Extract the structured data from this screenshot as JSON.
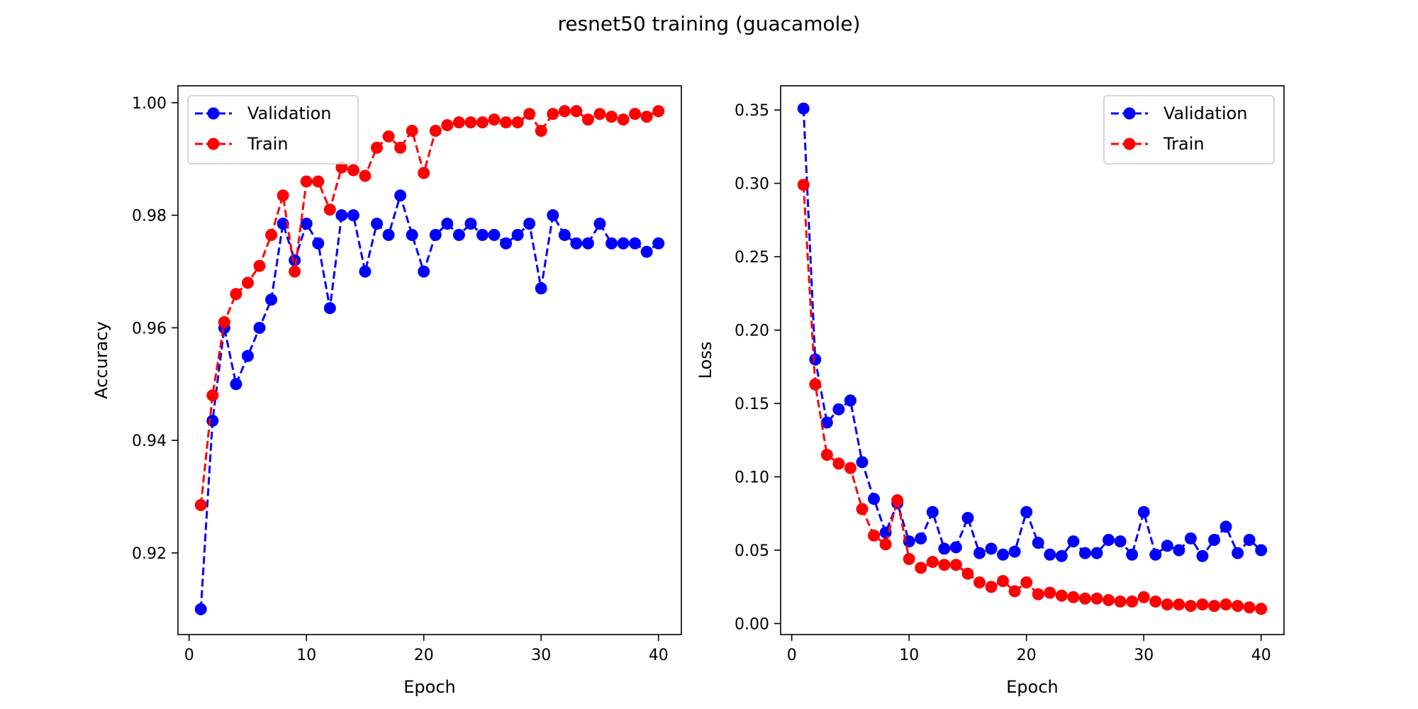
{
  "title": "resnet50 training (guacamole)",
  "colors": {
    "validation": "#0000ff",
    "train": "#ff0000",
    "axis": "#000000",
    "legend_border": "#cccccc"
  },
  "chart_data": [
    {
      "type": "line",
      "xlabel": "Epoch",
      "ylabel": "Accuracy",
      "xlim": [
        -0.95,
        41.95
      ],
      "ylim": [
        0.9055,
        1.003
      ],
      "xticks": [
        0,
        10,
        20,
        30,
        40
      ],
      "xtick_labels": [
        "0",
        "10",
        "20",
        "30",
        "40"
      ],
      "yticks": [
        0.92,
        0.94,
        0.96,
        0.98,
        1.0
      ],
      "ytick_labels": [
        "0.92",
        "0.94",
        "0.96",
        "0.98",
        "1.00"
      ],
      "grid": false,
      "legend_position": "upper left",
      "x": [
        1,
        2,
        3,
        4,
        5,
        6,
        7,
        8,
        9,
        10,
        11,
        12,
        13,
        14,
        15,
        16,
        17,
        18,
        19,
        20,
        21,
        22,
        23,
        24,
        25,
        26,
        27,
        28,
        29,
        30,
        31,
        32,
        33,
        34,
        35,
        36,
        37,
        38,
        39,
        40
      ],
      "series": [
        {
          "name": "Validation",
          "color": "#0000ff",
          "values": [
            0.91,
            0.9435,
            0.96,
            0.95,
            0.955,
            0.96,
            0.965,
            0.9785,
            0.972,
            0.9785,
            0.975,
            0.9635,
            0.98,
            0.98,
            0.97,
            0.9785,
            0.9765,
            0.9835,
            0.9765,
            0.97,
            0.9765,
            0.9785,
            0.9765,
            0.9785,
            0.9765,
            0.9765,
            0.975,
            0.9765,
            0.9785,
            0.967,
            0.98,
            0.9765,
            0.975,
            0.975,
            0.9785,
            0.975,
            0.975,
            0.975,
            0.9735,
            0.975
          ]
        },
        {
          "name": "Train",
          "color": "#ff0000",
          "values": [
            0.9285,
            0.948,
            0.961,
            0.966,
            0.968,
            0.971,
            0.9765,
            0.9835,
            0.97,
            0.986,
            0.986,
            0.981,
            0.9885,
            0.988,
            0.987,
            0.992,
            0.994,
            0.992,
            0.995,
            0.9875,
            0.995,
            0.996,
            0.9965,
            0.9965,
            0.9965,
            0.997,
            0.9965,
            0.9965,
            0.998,
            0.995,
            0.998,
            0.9985,
            0.9985,
            0.997,
            0.998,
            0.9975,
            0.997,
            0.998,
            0.9975,
            0.9985
          ]
        }
      ]
    },
    {
      "type": "line",
      "xlabel": "Epoch",
      "ylabel": "Loss",
      "xlim": [
        -0.95,
        41.95
      ],
      "ylim": [
        -0.0075,
        0.3665
      ],
      "xticks": [
        0,
        10,
        20,
        30,
        40
      ],
      "xtick_labels": [
        "0",
        "10",
        "20",
        "30",
        "40"
      ],
      "yticks": [
        0.0,
        0.05,
        0.1,
        0.15,
        0.2,
        0.25,
        0.3,
        0.35
      ],
      "ytick_labels": [
        "0.00",
        "0.05",
        "0.10",
        "0.15",
        "0.20",
        "0.25",
        "0.30",
        "0.35"
      ],
      "grid": false,
      "legend_position": "upper right",
      "x": [
        1,
        2,
        3,
        4,
        5,
        6,
        7,
        8,
        9,
        10,
        11,
        12,
        13,
        14,
        15,
        16,
        17,
        18,
        19,
        20,
        21,
        22,
        23,
        24,
        25,
        26,
        27,
        28,
        29,
        30,
        31,
        32,
        33,
        34,
        35,
        36,
        37,
        38,
        39,
        40
      ],
      "series": [
        {
          "name": "Validation",
          "color": "#0000ff",
          "values": [
            0.351,
            0.18,
            0.137,
            0.146,
            0.152,
            0.11,
            0.085,
            0.062,
            0.082,
            0.056,
            0.058,
            0.076,
            0.051,
            0.052,
            0.072,
            0.048,
            0.051,
            0.047,
            0.049,
            0.076,
            0.055,
            0.047,
            0.046,
            0.056,
            0.048,
            0.048,
            0.057,
            0.056,
            0.047,
            0.076,
            0.047,
            0.053,
            0.05,
            0.058,
            0.046,
            0.057,
            0.066,
            0.048,
            0.057,
            0.05
          ]
        },
        {
          "name": "Train",
          "color": "#ff0000",
          "values": [
            0.299,
            0.163,
            0.115,
            0.109,
            0.106,
            0.078,
            0.06,
            0.054,
            0.084,
            0.044,
            0.038,
            0.042,
            0.04,
            0.04,
            0.034,
            0.028,
            0.025,
            0.029,
            0.022,
            0.028,
            0.02,
            0.021,
            0.019,
            0.018,
            0.017,
            0.017,
            0.016,
            0.015,
            0.015,
            0.018,
            0.015,
            0.013,
            0.013,
            0.012,
            0.013,
            0.012,
            0.013,
            0.012,
            0.011,
            0.01
          ]
        }
      ]
    }
  ]
}
